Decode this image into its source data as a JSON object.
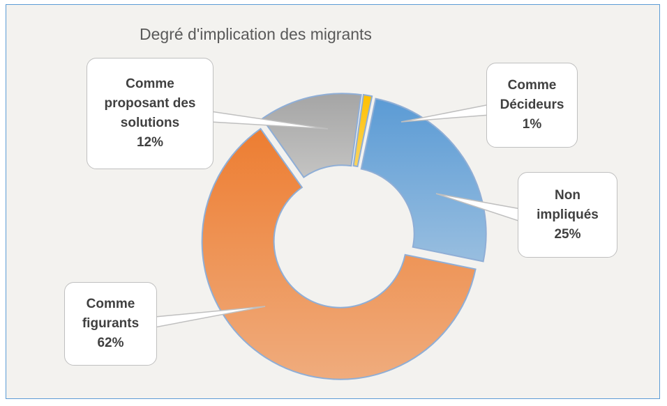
{
  "chart_data": {
    "type": "donut",
    "title": "Degré d'implication des migrants",
    "categories": [
      "Comme Décideurs",
      "Non impliqués",
      "Comme figurants",
      "Comme proposant des solutions"
    ],
    "values": [
      1,
      25,
      62,
      12
    ],
    "value_labels": [
      "1%",
      "25%",
      "62%",
      "12%"
    ],
    "colors": [
      "#ffc000",
      "#5b9bd5",
      "#ed7d31",
      "#a5a5a5"
    ]
  }
}
